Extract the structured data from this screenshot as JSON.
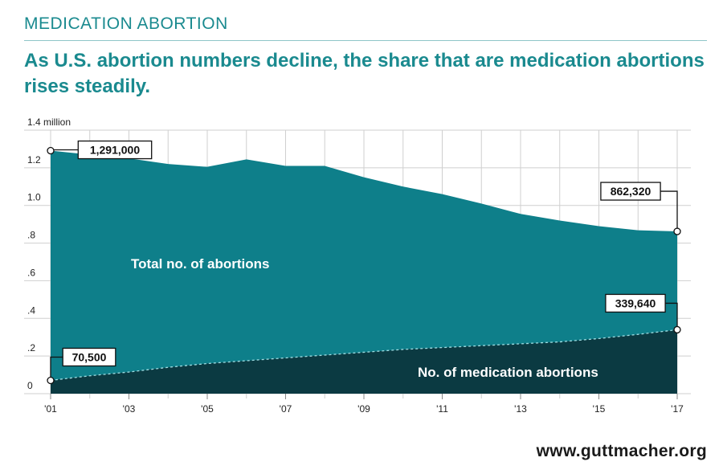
{
  "header": {
    "kicker": "MEDICATION ABORTION",
    "headline": "As U.S. abortion numbers decline, the share that are medication abortions rises steadily."
  },
  "footer": {
    "source": "www.guttmacher.org"
  },
  "colors": {
    "total_area": "#0e7f8a",
    "medication_area": "#0b3a42",
    "accent": "#1a8a8f",
    "grid": "#cfcfcf"
  },
  "chart_data": {
    "type": "area",
    "x": [
      2001,
      2002,
      2003,
      2004,
      2005,
      2006,
      2007,
      2008,
      2009,
      2010,
      2011,
      2012,
      2013,
      2014,
      2015,
      2016,
      2017
    ],
    "x_tick_values": [
      2001,
      2003,
      2005,
      2007,
      2009,
      2011,
      2013,
      2015,
      2017
    ],
    "x_tick_labels": [
      "'01",
      "'03",
      "'05",
      "'07",
      "'09",
      "'11",
      "'13",
      "'15",
      "'17"
    ],
    "y_tick_values": [
      0,
      0.2,
      0.4,
      0.6,
      0.8,
      1.0,
      1.2,
      1.4
    ],
    "y_tick_labels": [
      "0",
      ".2",
      ".4",
      ".6",
      ".8",
      "1.0",
      "1.2",
      "1.4 million"
    ],
    "ylim": [
      0,
      1.4
    ],
    "grid": true,
    "series": [
      {
        "name": "Total no. of abortions",
        "values": [
          1.291,
          1.27,
          1.25,
          1.22,
          1.205,
          1.245,
          1.21,
          1.21,
          1.15,
          1.1,
          1.06,
          1.01,
          0.955,
          0.92,
          0.89,
          0.868,
          0.862
        ]
      },
      {
        "name": "No. of medication abortions",
        "values": [
          0.0705,
          0.095,
          0.115,
          0.14,
          0.16,
          0.175,
          0.19,
          0.205,
          0.22,
          0.235,
          0.245,
          0.255,
          0.265,
          0.275,
          0.293,
          0.315,
          0.3396
        ]
      }
    ],
    "callouts": [
      {
        "label": "1,291,000",
        "x": 2001,
        "value": 1.291
      },
      {
        "label": "862,320",
        "x": 2017,
        "value": 0.862
      },
      {
        "label": "70,500",
        "x": 2001,
        "value": 0.0705
      },
      {
        "label": "339,640",
        "x": 2017,
        "value": 0.3396
      }
    ]
  }
}
